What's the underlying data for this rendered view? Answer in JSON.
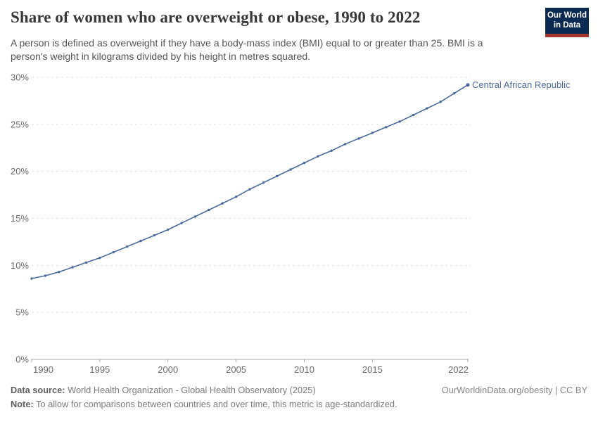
{
  "header": {
    "title": "Share of women who are overweight or obese, 1990 to 2022",
    "subtitle": "A person is defined as overweight if they have a body-mass index (BMI) equal to or greater than 25. BMI is a person's weight in kilograms divided by his height in metres squared.",
    "logo": {
      "line1": "Our World",
      "line2": "in Data"
    }
  },
  "chart_data": {
    "type": "line",
    "title": "Share of women who are overweight or obese, 1990 to 2022",
    "x": [
      1990,
      1991,
      1992,
      1993,
      1994,
      1995,
      1996,
      1997,
      1998,
      1999,
      2000,
      2001,
      2002,
      2003,
      2004,
      2005,
      2006,
      2007,
      2008,
      2009,
      2010,
      2011,
      2012,
      2013,
      2014,
      2015,
      2016,
      2017,
      2018,
      2019,
      2020,
      2021,
      2022
    ],
    "series": [
      {
        "name": "Central African Republic",
        "color": "#4c6a9c",
        "values": [
          8.6,
          8.9,
          9.3,
          9.8,
          10.3,
          10.8,
          11.4,
          12.0,
          12.6,
          13.2,
          13.8,
          14.5,
          15.2,
          15.9,
          16.6,
          17.3,
          18.1,
          18.8,
          19.5,
          20.2,
          20.9,
          21.6,
          22.2,
          22.9,
          23.5,
          24.1,
          24.7,
          25.3,
          26.0,
          26.7,
          27.4,
          28.3,
          29.2
        ]
      }
    ],
    "xlabel": "",
    "ylabel": "",
    "xlim": [
      1990,
      2022
    ],
    "ylim": [
      0,
      30
    ],
    "x_ticks": [
      1990,
      1995,
      2000,
      2005,
      2010,
      2015,
      2022
    ],
    "y_ticks": [
      0,
      5,
      10,
      15,
      20,
      25,
      30
    ],
    "y_tick_suffix": "%",
    "grid": "horizontal-dashed",
    "legend_position": "end-of-line-label"
  },
  "footer": {
    "data_source_label": "Data source:",
    "data_source_value": "World Health Organization - Global Health Observatory (2025)",
    "link": "OurWorldinData.org/obesity | CC BY",
    "note_label": "Note:",
    "note_value": "To allow for comparisons between countries and over time, this metric is age-standardized."
  },
  "colors": {
    "accent_line": "#4c6a9c",
    "grid_line": "#e0e0e0",
    "axis_line": "#a8a8a8",
    "tick_label": "#6b6b6b",
    "title_text": "#383838",
    "subtitle_text": "#555555",
    "logo_background": "#0b2a51",
    "logo_stripe": "#a5342b"
  }
}
